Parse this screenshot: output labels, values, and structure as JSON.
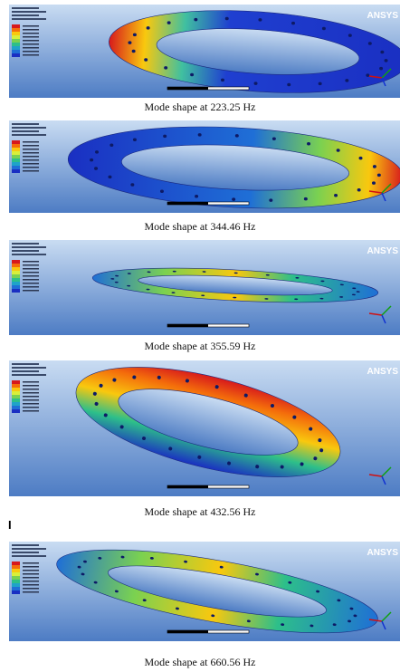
{
  "panels": [
    {
      "caption": "Mode shape at 223.25 Hz",
      "logo": "ANSYS"
    },
    {
      "caption": "Mode shape at 344.46 Hz"
    },
    {
      "caption": "Mode shape at 355.59 Hz",
      "logo": "ANSYS"
    },
    {
      "caption": "Mode shape at 432.56 Hz",
      "logo": "ANSYS"
    },
    {
      "caption": "Mode shape at 660.56 Hz",
      "logo": "ANSYS"
    }
  ],
  "separator_mark": "I"
}
